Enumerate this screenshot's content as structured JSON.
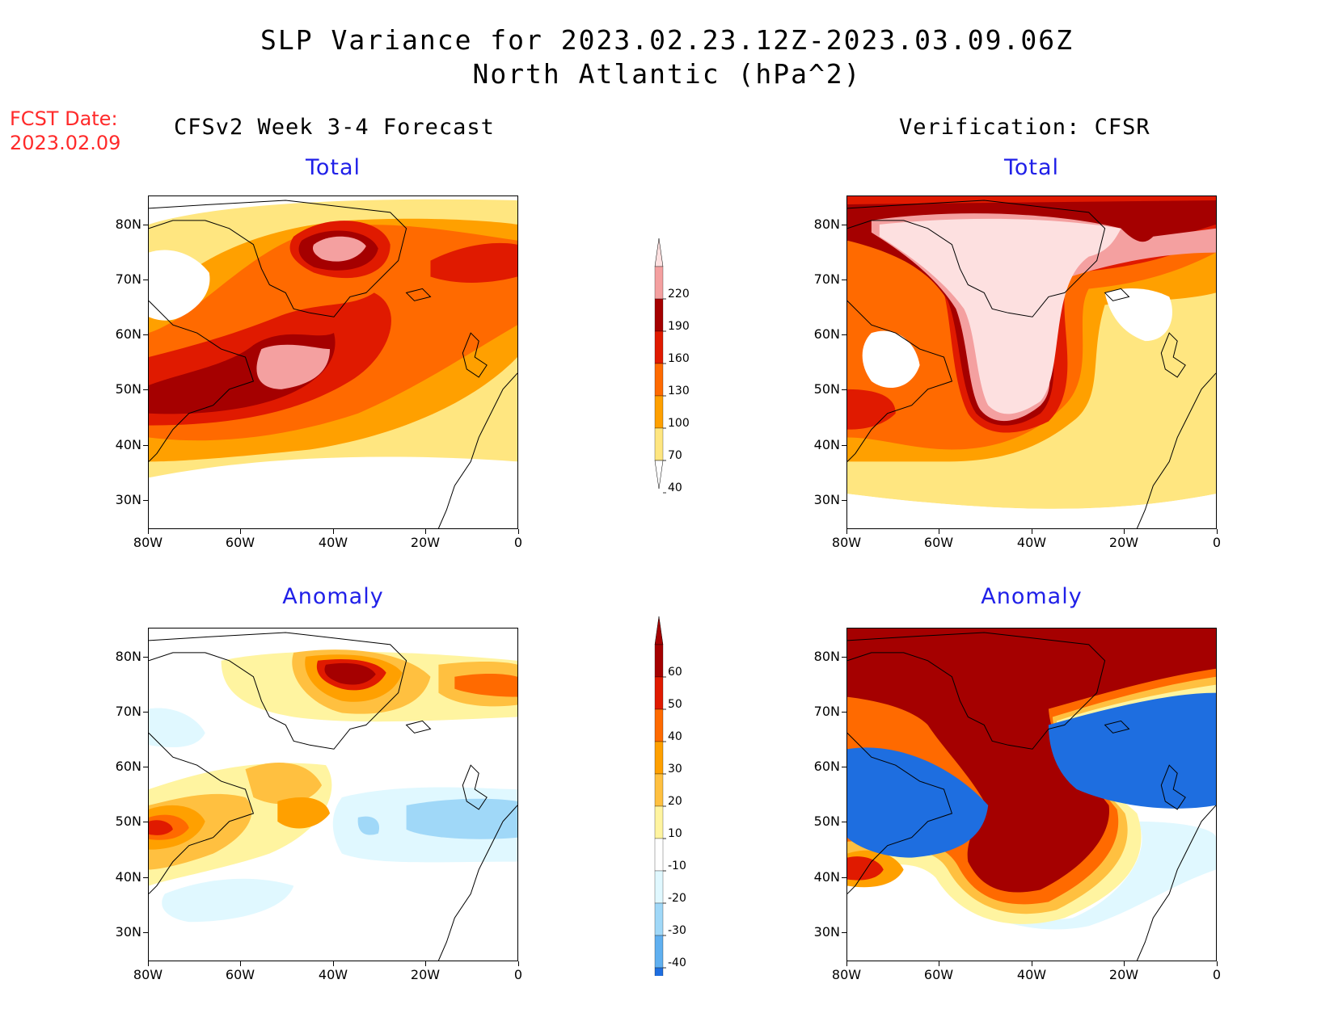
{
  "title_line1": "SLP Variance for 2023.02.23.12Z-2023.03.09.06Z",
  "title_line2": "North Atlantic (hPa^2)",
  "fcst_label": "FCST Date:",
  "fcst_date": "2023.02.09",
  "left_column_title": "CFSv2 Week 3-4 Forecast",
  "right_column_title": "Verification: CFSR",
  "panels": [
    {
      "subtitle": "Total"
    },
    {
      "subtitle": "Total"
    },
    {
      "subtitle": "Anomaly"
    },
    {
      "subtitle": "Anomaly"
    }
  ],
  "lat_ticks": [
    "80N",
    "70N",
    "60N",
    "50N",
    "40N",
    "30N"
  ],
  "lon_ticks": [
    "80W",
    "60W",
    "40W",
    "20W",
    "0"
  ],
  "colorbar_total": {
    "labels": [
      "220",
      "190",
      "160",
      "130",
      "100",
      "70",
      "40"
    ],
    "colors": [
      "#f4a0a0",
      "#a50000",
      "#e01a00",
      "#ff6a00",
      "#ffa000",
      "#ffe680"
    ]
  },
  "colorbar_anomaly": {
    "labels": [
      "60",
      "50",
      "40",
      "30",
      "20",
      "10",
      "-10",
      "-20",
      "-30",
      "-40"
    ],
    "colors": [
      "#a50000",
      "#e01a00",
      "#ff6a00",
      "#ffa000",
      "#ffc040",
      "#fff4a0",
      "#ffffff",
      "#e0f8ff",
      "#a0d8f8",
      "#60b0f0",
      "#1e6ee0"
    ]
  }
}
